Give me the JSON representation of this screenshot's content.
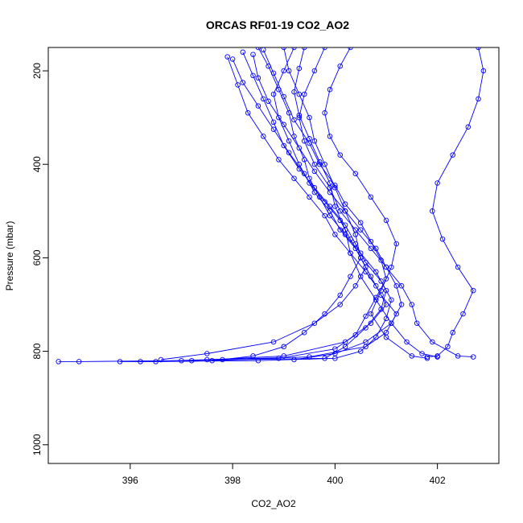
{
  "chart_data": {
    "type": "line",
    "title": "ORCAS RF01-19 CO2_AO2",
    "xlabel": "CO2_AO2",
    "ylabel": "Pressure (mbar)",
    "xlim": [
      394.4,
      403.2
    ],
    "ylim": [
      1040,
      150
    ],
    "y_reversed": true,
    "xticks": [
      396,
      398,
      400,
      402
    ],
    "xtick_labels": [
      "396",
      "398",
      "400",
      "402"
    ],
    "yticks": [
      200,
      400,
      600,
      800,
      1000
    ],
    "ytick_labels": [
      "200",
      "400",
      "600",
      "800",
      "1000"
    ],
    "grid": false,
    "legend": "none",
    "series_color": "#0000ff",
    "marker": "open-circle",
    "series": [
      {
        "x": [
          398.5,
          398.7,
          398.9,
          399.1,
          399.2,
          399.4,
          399.5,
          399.7,
          399.9,
          400.2,
          400.5,
          400.8,
          401.0,
          400.9,
          400.6,
          400.2,
          399.8,
          397.0,
          395.0,
          394.6
        ],
        "y": [
          150,
          190,
          240,
          290,
          340,
          390,
          430,
          470,
          510,
          550,
          590,
          630,
          670,
          710,
          750,
          790,
          815,
          820,
          822,
          822
        ]
      },
      {
        "x": [
          398.2,
          398.4,
          398.6,
          398.8,
          399.0,
          399.3,
          399.6,
          399.9,
          400.2,
          400.4,
          400.6,
          400.9,
          401.1,
          401.0,
          400.8,
          400.5,
          400.0,
          398.5,
          396.5,
          395.8
        ],
        "y": [
          160,
          210,
          260,
          310,
          360,
          410,
          450,
          490,
          530,
          570,
          610,
          650,
          690,
          730,
          770,
          800,
          815,
          820,
          822,
          822
        ]
      },
      {
        "x": [
          399.2,
          399.0,
          398.8,
          398.9,
          399.1,
          399.3,
          399.5,
          399.8,
          400.1,
          400.3,
          400.5,
          400.7,
          400.9,
          401.2,
          401.0,
          400.6,
          399.5,
          397.5,
          396.2
        ],
        "y": [
          150,
          200,
          250,
          300,
          350,
          400,
          440,
          480,
          520,
          560,
          600,
          640,
          680,
          720,
          760,
          790,
          812,
          818,
          822
        ]
      },
      {
        "x": [
          397.9,
          398.1,
          398.3,
          398.6,
          398.9,
          399.2,
          399.5,
          399.8,
          400.0,
          400.3,
          400.6,
          400.8,
          401.0,
          400.7,
          400.2,
          399.0,
          397.2
        ],
        "y": [
          170,
          230,
          290,
          340,
          390,
          430,
          470,
          510,
          550,
          590,
          630,
          660,
          700,
          740,
          780,
          810,
          820
        ]
      },
      {
        "x": [
          399.8,
          399.6,
          399.4,
          399.3,
          399.4,
          399.6,
          399.9,
          400.1,
          400.4,
          400.7,
          401.0,
          401.3,
          401.5,
          401.6,
          401.9,
          402.4,
          402.7
        ],
        "y": [
          150,
          200,
          250,
          300,
          350,
          400,
          450,
          500,
          540,
          580,
          620,
          660,
          700,
          740,
          780,
          810,
          812
        ]
      },
      {
        "x": [
          400.3,
          400.1,
          399.9,
          399.8,
          399.9,
          400.1,
          400.4,
          400.7,
          401.0,
          401.2,
          401.1,
          400.9,
          400.7,
          401.0,
          401.5,
          401.8
        ],
        "y": [
          150,
          190,
          240,
          290,
          340,
          380,
          420,
          470,
          520,
          570,
          620,
          670,
          720,
          770,
          810,
          815
        ]
      },
      {
        "x": [
          398.6,
          398.8,
          399.0,
          399.2,
          399.5,
          399.7,
          400.0,
          400.2,
          400.5,
          400.7,
          400.9,
          401.0,
          400.8,
          400.6,
          400.4,
          400.0,
          398.9,
          397.6
        ],
        "y": [
          155,
          205,
          255,
          305,
          355,
          400,
          445,
          485,
          525,
          565,
          605,
          645,
          685,
          725,
          765,
          795,
          815,
          820
        ]
      },
      {
        "x": [
          399.0,
          399.1,
          399.3,
          399.5,
          399.6,
          399.8,
          400.0,
          400.2,
          400.4,
          400.5,
          400.3,
          400.1,
          399.8,
          399.4,
          399.0,
          398.4,
          397.8
        ],
        "y": [
          150,
          200,
          250,
          300,
          350,
          400,
          450,
          500,
          550,
          600,
          640,
          680,
          720,
          760,
          790,
          810,
          818
        ]
      },
      {
        "x": [
          398.4,
          398.5,
          398.7,
          399.0,
          399.3,
          399.6,
          399.9,
          400.2,
          400.5,
          400.8,
          401.0,
          401.2,
          401.3,
          401.1,
          400.6,
          400.0,
          399.2
        ],
        "y": [
          165,
          215,
          265,
          315,
          365,
          415,
          460,
          500,
          540,
          580,
          620,
          660,
          700,
          740,
          780,
          805,
          818
        ]
      },
      {
        "x": [
          402.8,
          402.9,
          402.8,
          402.6,
          402.3,
          402.0,
          401.9,
          402.1,
          402.4,
          402.7,
          402.5,
          402.3,
          402.2,
          402.0,
          401.8
        ],
        "y": [
          150,
          200,
          260,
          320,
          380,
          440,
          500,
          560,
          620,
          670,
          720,
          760,
          790,
          810,
          812
        ]
      },
      {
        "x": [
          399.4,
          399.3,
          399.2,
          399.3,
          399.5,
          399.7,
          399.9,
          400.0,
          400.2,
          400.3,
          400.5,
          400.8,
          401.1,
          401.4,
          401.7,
          402.0
        ],
        "y": [
          150,
          195,
          245,
          295,
          345,
          395,
          440,
          490,
          540,
          590,
          640,
          690,
          740,
          780,
          805,
          812
        ]
      },
      {
        "x": [
          398.0,
          398.2,
          398.5,
          398.8,
          399.1,
          399.4,
          399.6,
          399.9,
          400.1,
          400.4,
          400.6,
          400.4,
          400.1,
          399.6,
          398.8,
          397.5,
          396.6
        ],
        "y": [
          175,
          225,
          275,
          325,
          375,
          420,
          460,
          500,
          540,
          580,
          620,
          660,
          700,
          740,
          780,
          805,
          818
        ]
      }
    ]
  }
}
